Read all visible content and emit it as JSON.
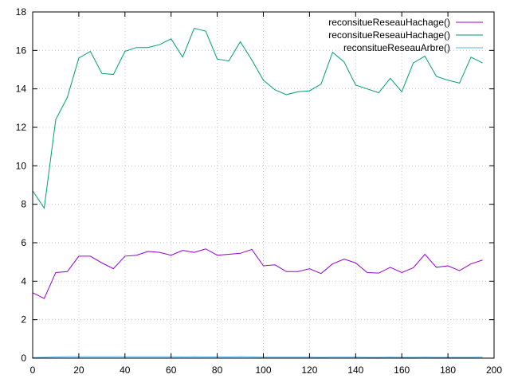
{
  "chart_data": {
    "type": "line",
    "title": "",
    "xlabel": "",
    "ylabel": "",
    "xlim": [
      0,
      200
    ],
    "ylim": [
      0,
      18
    ],
    "xticks": [
      0,
      20,
      40,
      60,
      80,
      100,
      120,
      140,
      160,
      180,
      200
    ],
    "yticks": [
      0,
      2,
      4,
      6,
      8,
      10,
      12,
      14,
      16,
      18
    ],
    "grid": true,
    "legend_position": "top-right",
    "x": [
      0,
      5,
      10,
      15,
      20,
      25,
      30,
      35,
      40,
      45,
      50,
      55,
      60,
      65,
      70,
      75,
      80,
      85,
      90,
      95,
      100,
      105,
      110,
      115,
      120,
      125,
      130,
      135,
      140,
      145,
      150,
      155,
      160,
      165,
      170,
      175,
      180,
      185,
      190,
      195
    ],
    "series": [
      {
        "name": "reconsitueReseauHachage()",
        "color": "#9400d3",
        "values": [
          3.4,
          3.1,
          4.45,
          4.5,
          5.3,
          5.3,
          4.95,
          4.65,
          5.3,
          5.35,
          5.55,
          5.5,
          5.35,
          5.6,
          5.5,
          5.68,
          5.35,
          5.4,
          5.45,
          5.65,
          4.8,
          4.85,
          4.5,
          4.5,
          4.65,
          4.4,
          4.9,
          5.15,
          4.95,
          4.45,
          4.42,
          4.72,
          4.45,
          4.7,
          5.4,
          4.72,
          4.8,
          4.55,
          4.9,
          5.1
        ]
      },
      {
        "name": "reconsitueReseauHachage()",
        "color": "#009e73",
        "values": [
          8.7,
          7.8,
          12.4,
          13.55,
          15.6,
          15.95,
          14.8,
          14.75,
          15.95,
          16.15,
          16.15,
          16.3,
          16.6,
          15.65,
          17.15,
          17.0,
          15.55,
          15.45,
          16.45,
          15.5,
          14.45,
          13.95,
          13.7,
          13.85,
          13.9,
          14.25,
          15.9,
          15.4,
          14.2,
          14.0,
          13.8,
          14.55,
          13.85,
          15.35,
          15.7,
          14.65,
          14.45,
          14.3,
          15.65,
          15.35
        ]
      },
      {
        "name": "reconsitueReseauArbre()",
        "color": "#56b4e9",
        "values": [
          0.03,
          0.04,
          0.06,
          0.07,
          0.07,
          0.07,
          0.07,
          0.07,
          0.07,
          0.07,
          0.07,
          0.07,
          0.07,
          0.06,
          0.07,
          0.06,
          0.06,
          0.06,
          0.07,
          0.06,
          0.05,
          0.05,
          0.05,
          0.05,
          0.05,
          0.04,
          0.05,
          0.05,
          0.05,
          0.04,
          0.04,
          0.05,
          0.04,
          0.04,
          0.05,
          0.04,
          0.04,
          0.04,
          0.04,
          0.05
        ]
      }
    ]
  }
}
